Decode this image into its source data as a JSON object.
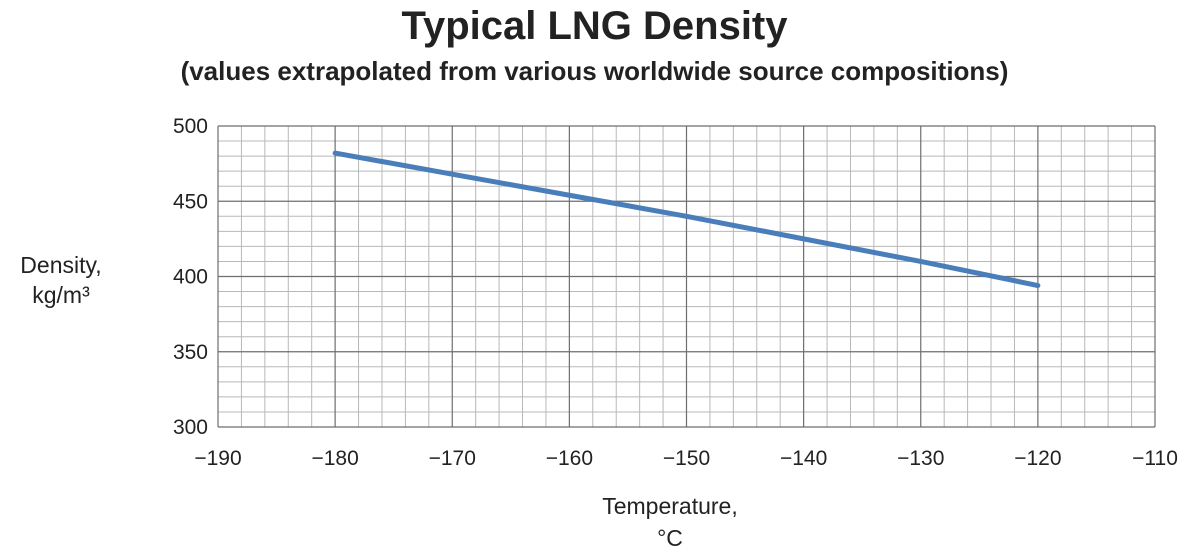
{
  "chart_data": {
    "type": "line",
    "title": "Typical LNG Density",
    "subtitle": "(values extrapolated from various worldwide source compositions)",
    "ylabel_lines": [
      "Density,",
      "kg/m³"
    ],
    "xlabel_lines": [
      "Temperature,",
      "°C"
    ],
    "xlim": [
      -190,
      -110
    ],
    "ylim": [
      300,
      500
    ],
    "x_ticks": [
      -190,
      -180,
      -170,
      -160,
      -150,
      -140,
      -130,
      -120,
      -110
    ],
    "x_tick_labels": [
      "−190",
      "−180",
      "−170",
      "−160",
      "−150",
      "−140",
      "−130",
      "−120",
      "−110"
    ],
    "y_ticks": [
      300,
      350,
      400,
      450,
      500
    ],
    "y_tick_labels": [
      "300",
      "350",
      "400",
      "450",
      "500"
    ],
    "grid": true,
    "series": [
      {
        "color": "#4a7ebb",
        "x": [
          -180,
          -170,
          -160,
          -150,
          -140,
          -130,
          -120
        ],
        "y": [
          482,
          468,
          454,
          440,
          425,
          410,
          394
        ]
      }
    ]
  }
}
